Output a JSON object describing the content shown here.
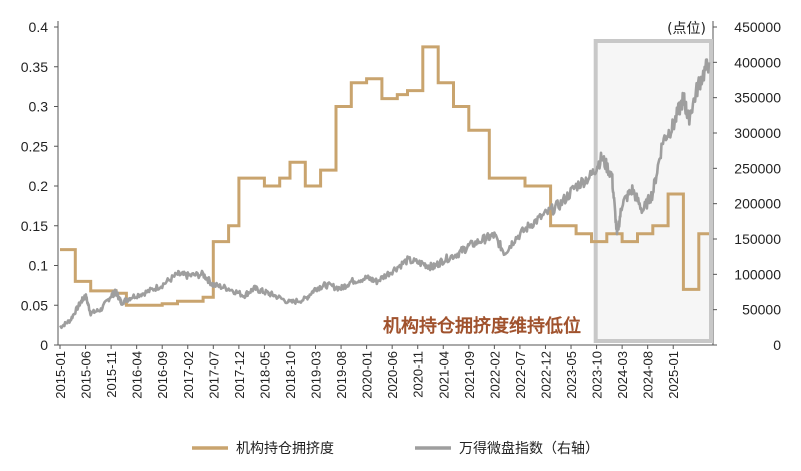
{
  "chart_data": {
    "type": "line",
    "x": [
      "2015-01",
      "2015-06",
      "2015-11",
      "2016-04",
      "2016-09",
      "2017-02",
      "2017-07",
      "2017-12",
      "2018-05",
      "2018-10",
      "2019-03",
      "2019-08",
      "2020-01",
      "2020-06",
      "2020-11",
      "2021-04",
      "2021-09",
      "2022-02",
      "2022-07",
      "2022-12",
      "2023-05",
      "2023-10",
      "2024-03",
      "2024-08",
      "2025-01"
    ],
    "y_left": {
      "ticks": [
        "0",
        "0.05",
        "0.1",
        "0.15",
        "0.2",
        "0.25",
        "0.3",
        "0.35",
        "0.4"
      ],
      "min": 0,
      "max": 0.4
    },
    "y_right": {
      "ticks": [
        "0",
        "50000",
        "100000",
        "150000",
        "200000",
        "250000",
        "300000",
        "350000",
        "400000",
        "450000"
      ],
      "min": 0,
      "max": 450000,
      "unit": "(点位)"
    },
    "series": [
      {
        "name": "机构持仓拥挤度",
        "axis": "left",
        "color": "#c9a46e",
        "step": true,
        "points": [
          [
            "2015-01",
            0.12
          ],
          [
            "2015-04",
            0.08
          ],
          [
            "2015-07",
            0.068
          ],
          [
            "2015-12",
            0.065
          ],
          [
            "2016-02",
            0.05
          ],
          [
            "2016-09",
            0.052
          ],
          [
            "2016-12",
            0.055
          ],
          [
            "2017-05",
            0.06
          ],
          [
            "2017-07",
            0.13
          ],
          [
            "2017-10",
            0.15
          ],
          [
            "2017-12",
            0.21
          ],
          [
            "2018-05",
            0.2
          ],
          [
            "2018-08",
            0.21
          ],
          [
            "2018-10",
            0.23
          ],
          [
            "2019-01",
            0.2
          ],
          [
            "2019-04",
            0.22
          ],
          [
            "2019-07",
            0.3
          ],
          [
            "2019-10",
            0.33
          ],
          [
            "2020-01",
            0.335
          ],
          [
            "2020-04",
            0.31
          ],
          [
            "2020-07",
            0.315
          ],
          [
            "2020-09",
            0.32
          ],
          [
            "2020-12",
            0.375
          ],
          [
            "2021-03",
            0.33
          ],
          [
            "2021-06",
            0.3
          ],
          [
            "2021-09",
            0.27
          ],
          [
            "2022-01",
            0.21
          ],
          [
            "2022-06",
            0.21
          ],
          [
            "2022-08",
            0.2
          ],
          [
            "2023-01",
            0.15
          ],
          [
            "2023-06",
            0.14
          ],
          [
            "2023-09",
            0.13
          ],
          [
            "2023-12",
            0.14
          ],
          [
            "2024-03",
            0.13
          ],
          [
            "2024-06",
            0.14
          ],
          [
            "2024-09",
            0.15
          ],
          [
            "2024-12",
            0.19
          ],
          [
            "2025-03",
            0.07
          ],
          [
            "2025-06",
            0.14
          ],
          [
            "2025-08",
            0.14
          ]
        ]
      },
      {
        "name": "万得微盘指数（右轴）",
        "axis": "right",
        "color": "#9e9e9e",
        "step": false,
        "points": [
          [
            "2015-01",
            25000
          ],
          [
            "2015-03",
            35000
          ],
          [
            "2015-05",
            60000
          ],
          [
            "2015-06",
            70000
          ],
          [
            "2015-07",
            45000
          ],
          [
            "2015-09",
            50000
          ],
          [
            "2015-11",
            70000
          ],
          [
            "2015-12",
            75000
          ],
          [
            "2016-01",
            60000
          ],
          [
            "2016-03",
            68000
          ],
          [
            "2016-06",
            75000
          ],
          [
            "2016-09",
            85000
          ],
          [
            "2016-12",
            100000
          ],
          [
            "2017-02",
            98000
          ],
          [
            "2017-05",
            100000
          ],
          [
            "2017-07",
            85000
          ],
          [
            "2017-10",
            80000
          ],
          [
            "2018-01",
            70000
          ],
          [
            "2018-03",
            80000
          ],
          [
            "2018-05",
            75000
          ],
          [
            "2018-07",
            70000
          ],
          [
            "2018-10",
            60000
          ],
          [
            "2019-01",
            65000
          ],
          [
            "2019-03",
            80000
          ],
          [
            "2019-05",
            85000
          ],
          [
            "2019-08",
            80000
          ],
          [
            "2019-10",
            90000
          ],
          [
            "2020-01",
            95000
          ],
          [
            "2020-03",
            90000
          ],
          [
            "2020-06",
            105000
          ],
          [
            "2020-09",
            120000
          ],
          [
            "2020-12",
            115000
          ],
          [
            "2021-02",
            110000
          ],
          [
            "2021-04",
            120000
          ],
          [
            "2021-07",
            130000
          ],
          [
            "2021-09",
            140000
          ],
          [
            "2021-12",
            150000
          ],
          [
            "2022-02",
            155000
          ],
          [
            "2022-04",
            130000
          ],
          [
            "2022-06",
            150000
          ],
          [
            "2022-09",
            170000
          ],
          [
            "2022-12",
            185000
          ],
          [
            "2023-03",
            200000
          ],
          [
            "2023-06",
            225000
          ],
          [
            "2023-09",
            240000
          ],
          [
            "2023-11",
            265000
          ],
          [
            "2024-01",
            240000
          ],
          [
            "2024-02",
            155000
          ],
          [
            "2024-03",
            200000
          ],
          [
            "2024-05",
            220000
          ],
          [
            "2024-07",
            190000
          ],
          [
            "2024-09",
            215000
          ],
          [
            "2024-11",
            290000
          ],
          [
            "2025-01",
            310000
          ],
          [
            "2025-03",
            350000
          ],
          [
            "2025-04",
            320000
          ],
          [
            "2025-06",
            370000
          ],
          [
            "2025-08",
            400000
          ]
        ]
      }
    ],
    "annotation": {
      "text": "机构持仓拥挤度维持低位",
      "color": "#a0522d"
    },
    "highlight_range": [
      "2023-11",
      "2025-08"
    ],
    "legend": {
      "placement": "bottom"
    }
  }
}
